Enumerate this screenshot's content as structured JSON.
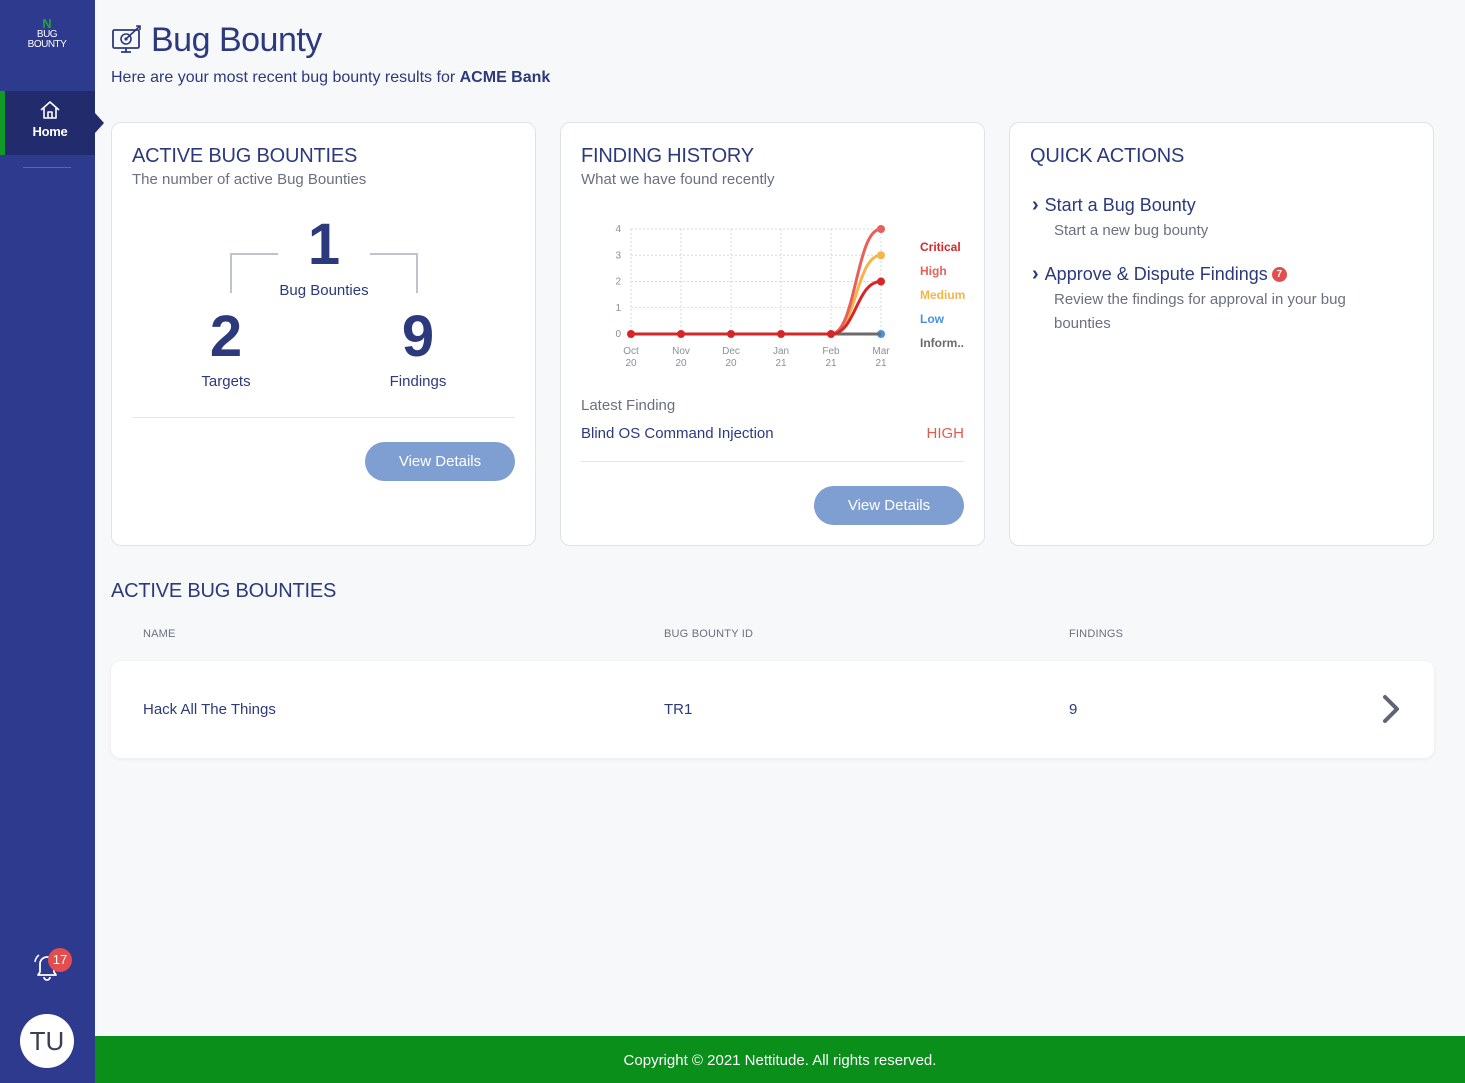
{
  "sidebar": {
    "logo": {
      "top": "N",
      "line1": "BUG",
      "line2": "BOUNTY"
    },
    "items": [
      {
        "label": "Home",
        "icon": "home-icon"
      }
    ],
    "notifications_count": "17",
    "user_initials": "TU"
  },
  "header": {
    "title": "Bug Bounty",
    "subtitle_prefix": "Here are your most recent bug bounty results for",
    "org": "ACME Bank"
  },
  "active_card": {
    "title": "ACTIVE BUG BOUNTIES",
    "subtitle": "The number of active Bug Bounties",
    "bounties_value": "1",
    "bounties_label": "Bug Bounties",
    "targets_value": "2",
    "targets_label": "Targets",
    "findings_value": "9",
    "findings_label": "Findings",
    "button": "View Details"
  },
  "history_card": {
    "title": "FINDING HISTORY",
    "subtitle": "What we have found recently",
    "latest_label": "Latest Finding",
    "latest_name": "Blind OS Command Injection",
    "latest_severity": "HIGH",
    "button": "View Details"
  },
  "chart_data": {
    "type": "line",
    "x_labels": [
      [
        "Oct",
        "20"
      ],
      [
        "Nov",
        "20"
      ],
      [
        "Dec",
        "20"
      ],
      [
        "Jan",
        "21"
      ],
      [
        "Feb",
        "21"
      ],
      [
        "Mar",
        "21"
      ]
    ],
    "y_ticks": [
      "0",
      "1",
      "2",
      "3",
      "4"
    ],
    "ylim": [
      0,
      4
    ],
    "grid": true,
    "legend_position": "right",
    "series": [
      {
        "name": "Critical",
        "color": "#d62728",
        "values": [
          0,
          0,
          0,
          0,
          0,
          2
        ]
      },
      {
        "name": "High",
        "color": "#e8605a",
        "values": [
          0,
          0,
          0,
          0,
          0,
          4
        ]
      },
      {
        "name": "Medium",
        "color": "#f5b54a",
        "values": [
          0,
          0,
          0,
          0,
          0,
          3
        ]
      },
      {
        "name": "Low",
        "color": "#4a90e2",
        "values": [
          0,
          0,
          0,
          0,
          0,
          0
        ]
      },
      {
        "name": "Inform..",
        "color": "#6b6b6b",
        "values": [
          0,
          0,
          0,
          0,
          0,
          0
        ]
      }
    ]
  },
  "quick_actions": {
    "title": "QUICK ACTIONS",
    "items": [
      {
        "title": "Start a Bug Bounty",
        "desc": "Start a new bug bounty"
      },
      {
        "title": "Approve & Dispute Findings",
        "badge": "7",
        "desc": "Review the findings for approval in your bug bounties"
      }
    ]
  },
  "table": {
    "title": "ACTIVE BUG BOUNTIES",
    "columns": [
      "NAME",
      "BUG BOUNTY ID",
      "FINDINGS"
    ],
    "rows": [
      {
        "name": "Hack All The Things",
        "id": "TR1",
        "findings": "9"
      }
    ]
  },
  "footer": {
    "text": "Copyright © 2021 Nettitude. All rights reserved."
  },
  "colors": {
    "sidebar": "#2d3a8e",
    "accent": "#129a29",
    "primary_text": "#2c3a7d",
    "button": "#7f9fd3",
    "footer": "#0a8f1b"
  }
}
